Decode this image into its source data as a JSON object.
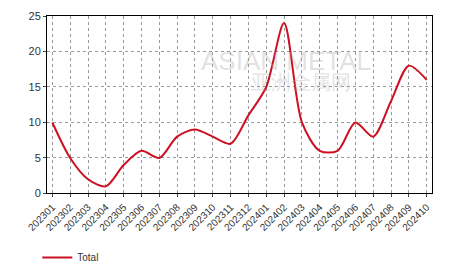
{
  "chart_data": {
    "type": "line",
    "categories": [
      "202301",
      "202302",
      "202303",
      "202304",
      "202305",
      "202306",
      "202307",
      "202308",
      "202309",
      "202310",
      "202311",
      "202312",
      "202401",
      "202402",
      "202403",
      "202404",
      "202405",
      "202406",
      "202407",
      "202408",
      "202409",
      "202410"
    ],
    "series": [
      {
        "name": "Total",
        "color": "#cc1122",
        "values": [
          10,
          5,
          2,
          1,
          4,
          6,
          5,
          8,
          9,
          8,
          7,
          11,
          15,
          24,
          10,
          6,
          6,
          10,
          8,
          13,
          18,
          16
        ]
      }
    ],
    "ylim": [
      0,
      25
    ],
    "yticks": [
      0,
      5,
      10,
      15,
      20,
      25
    ],
    "grid": true,
    "legend": "bottom-left",
    "annotations": [
      "ASIAN METAL",
      "亚洲金属网"
    ]
  }
}
